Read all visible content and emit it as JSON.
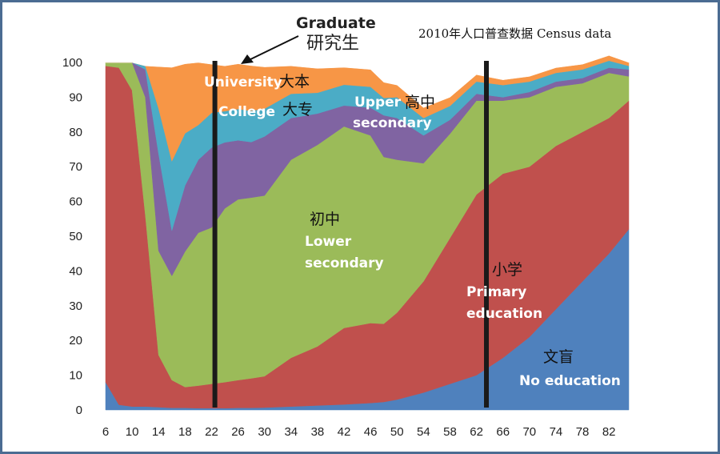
{
  "chart_data": {
    "type": "area",
    "stacked": true,
    "title": "2010年人口普查数据  Census data",
    "xlabel": "",
    "ylabel": "",
    "ylim": [
      0,
      100
    ],
    "xlim": [
      6,
      85
    ],
    "y_ticks": [
      0,
      10,
      20,
      30,
      40,
      50,
      60,
      70,
      80,
      90,
      100
    ],
    "x_ticks": [
      6,
      10,
      14,
      18,
      22,
      26,
      30,
      34,
      38,
      42,
      46,
      50,
      54,
      58,
      62,
      66,
      70,
      74,
      78,
      82
    ],
    "grid": false,
    "legend": "none",
    "x": [
      6,
      8,
      10,
      12,
      14,
      16,
      18,
      20,
      22,
      24,
      26,
      28,
      30,
      34,
      38,
      42,
      46,
      48,
      50,
      54,
      58,
      62,
      66,
      70,
      74,
      78,
      82,
      85
    ],
    "series": [
      {
        "name": "No education",
        "label_cn": "文盲",
        "color": "#4f81bd",
        "values": [
          8,
          1.5,
          1,
          1,
          0.8,
          0.6,
          0.6,
          0.5,
          0.5,
          0.5,
          0.6,
          0.6,
          0.7,
          1,
          1.3,
          1.6,
          2,
          2.3,
          3,
          5,
          7.5,
          10,
          15,
          21,
          29,
          37,
          45,
          52
        ]
      },
      {
        "name": "Primary education",
        "label_cn": "小学",
        "color": "#c0504d",
        "values": [
          91,
          97,
          91,
          55,
          15,
          8,
          6,
          6.5,
          7,
          7.5,
          8,
          8.5,
          9,
          14,
          17,
          22,
          23,
          22.5,
          25,
          32,
          42,
          52,
          53,
          49,
          47,
          43,
          39,
          37
        ]
      },
      {
        "name": "Lower secondary",
        "label_cn": "初中",
        "color": "#9bbb59",
        "values": [
          1,
          1.5,
          8,
          34,
          30,
          30,
          39,
          44,
          45,
          50,
          52,
          52,
          52,
          57,
          58,
          58,
          54,
          48,
          44,
          34,
          30,
          27,
          21,
          20,
          17,
          14,
          13,
          7
        ]
      },
      {
        "name": "Upper secondary",
        "label_cn": "高中",
        "color": "#8064a2",
        "values": [
          0,
          0,
          0,
          8,
          28,
          13,
          19,
          21,
          23,
          19,
          17,
          16,
          17,
          12,
          9,
          6,
          8,
          12,
          12,
          8,
          4,
          2,
          1,
          1.5,
          1.5,
          1.5,
          1.5,
          2
        ]
      },
      {
        "name": "College",
        "label_cn": "大专",
        "color": "#4bacc6",
        "values": [
          0,
          0,
          0,
          1,
          13,
          20,
          15,
          10,
          10,
          9,
          9,
          9,
          8,
          7,
          6,
          6,
          6,
          5,
          6,
          5,
          4,
          3.5,
          3.5,
          3,
          2.5,
          2.5,
          2,
          1
        ]
      },
      {
        "name": "University",
        "label_cn": "大本",
        "color": "#f79646",
        "values": [
          0,
          0,
          0,
          0,
          12,
          27,
          20,
          18,
          14,
          13,
          13,
          13,
          12,
          8,
          7,
          5,
          5,
          4.5,
          3.5,
          3,
          2.5,
          2,
          1.5,
          1.5,
          1.5,
          1.5,
          1.5,
          1
        ]
      },
      {
        "name": "Graduate",
        "label_cn": "研究生",
        "color": "#ffffff",
        "values": [
          0,
          0,
          0,
          1,
          1.2,
          1.4,
          0.4,
          0,
          0.5,
          1,
          0.4,
          0.9,
          1.3,
          1,
          0.7,
          1.4,
          2,
          1.7,
          1.5,
          1,
          1,
          1.5,
          1.5,
          1.0,
          1.5,
          1.5,
          1.5,
          0
        ]
      }
    ],
    "vertical_markers": [
      22.5,
      63.5
    ],
    "labels": {
      "graduate_en": "Graduate",
      "graduate_cn": "研究生",
      "university_en": "University",
      "university_cn": "大本",
      "college_en": "College",
      "college_cn": "大专",
      "upper_en_1": "Upper",
      "upper_en_2": "secondary",
      "upper_cn": "高中",
      "lower_cn": "初中",
      "lower_en_1": "Lower",
      "lower_en_2": "secondary",
      "primary_cn": "小学",
      "primary_en_1": "Primary",
      "primary_en_2": "education",
      "none_cn": "文盲",
      "none_en": "No education"
    }
  }
}
